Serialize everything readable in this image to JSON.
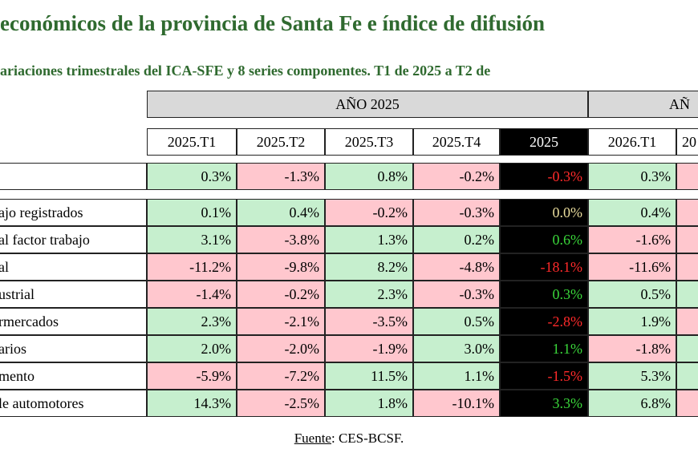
{
  "header": {
    "title": "económicos de la provincia de Santa Fe e índice de difusión",
    "subtitle": "ariaciones trimestrales del ICA-SFE y 8 series componentes. T1 de 2025 a T2 de"
  },
  "table": {
    "group_headers": [
      "AÑO 2025",
      "AÑ"
    ],
    "columns": [
      "2025.T1",
      "2025.T2",
      "2025.T3",
      "2025.T4",
      "2025",
      "2026.T1",
      "20"
    ],
    "rows": [
      {
        "label": "",
        "values": [
          "0.3%",
          "-1.3%",
          "0.8%",
          "-0.2%",
          "-0.3%",
          "0.3%"
        ]
      },
      {
        "label": "ajo registrados",
        "values": [
          "0.1%",
          "0.4%",
          "-0.2%",
          "-0.3%",
          "0.0%",
          "0.4%"
        ]
      },
      {
        "label": "al factor trabajo",
        "values": [
          "3.1%",
          "-3.8%",
          "1.3%",
          "0.2%",
          "0.6%",
          "-1.6%"
        ]
      },
      {
        "label": "al",
        "values": [
          "-11.2%",
          "-9.8%",
          "8.2%",
          "-4.8%",
          "-18.1%",
          "-11.6%"
        ]
      },
      {
        "label": "ustrial",
        "values": [
          "-1.4%",
          "-0.2%",
          "2.3%",
          "-0.3%",
          "0.3%",
          "0.5%"
        ]
      },
      {
        "label": "rmercados",
        "values": [
          "2.3%",
          "-2.1%",
          "-3.5%",
          "0.5%",
          "-2.8%",
          "1.9%"
        ]
      },
      {
        "label": "arios",
        "values": [
          "2.0%",
          "-2.0%",
          "-1.9%",
          "3.0%",
          "1.1%",
          "-1.8%"
        ]
      },
      {
        "label": "mento",
        "values": [
          "-5.9%",
          "-7.2%",
          "11.5%",
          "1.1%",
          "-1.5%",
          "5.3%"
        ]
      },
      {
        "label": "le automotores",
        "values": [
          "14.3%",
          "-2.5%",
          "1.8%",
          "-10.1%",
          "3.3%",
          "6.8%"
        ]
      }
    ]
  },
  "footer": {
    "source_label": "Fuente",
    "source": ": CES-BCSF."
  }
}
